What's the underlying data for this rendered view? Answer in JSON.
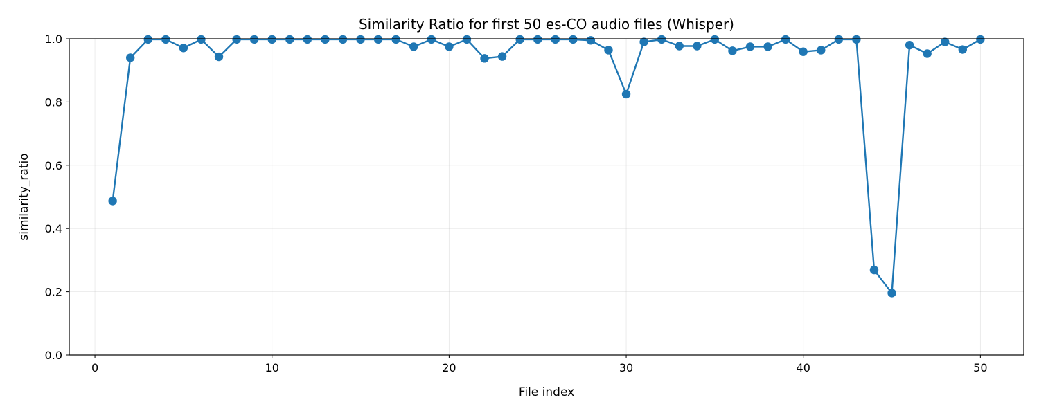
{
  "chart_data": {
    "type": "line",
    "title": "Similarity Ratio for first 50 es-CO audio files (Whisper)",
    "xlabel": "File index",
    "ylabel": "similarity_ratio",
    "xlim": [
      -1.45,
      52.45
    ],
    "ylim": [
      0.0,
      1.0
    ],
    "xticks": [
      0,
      10,
      20,
      30,
      40,
      50
    ],
    "xtick_labels": [
      "0",
      "10",
      "20",
      "30",
      "40",
      "50"
    ],
    "yticks": [
      0.0,
      0.2,
      0.4,
      0.6,
      0.8,
      1.0
    ],
    "ytick_labels": [
      "0.0",
      "0.2",
      "0.4",
      "0.6",
      "0.8",
      "1.0"
    ],
    "grid": true,
    "line_color": "#1f77b4",
    "marker": "circle",
    "series": [
      {
        "x": [
          1,
          2,
          3,
          4,
          5,
          6,
          7,
          8,
          9,
          10,
          11,
          12,
          13,
          14,
          15,
          16,
          17,
          18,
          19,
          20,
          21,
          22,
          23,
          24,
          25,
          26,
          27,
          28,
          29,
          30,
          31,
          32,
          33,
          34,
          35,
          36,
          37,
          38,
          39,
          40,
          41,
          42,
          43,
          44,
          45,
          46,
          47,
          48,
          49,
          50
        ],
        "values": [
          0.487,
          0.94,
          0.998,
          0.998,
          0.971,
          0.998,
          0.943,
          0.998,
          0.998,
          0.998,
          0.998,
          0.998,
          0.998,
          0.998,
          0.998,
          0.998,
          0.998,
          0.975,
          0.998,
          0.975,
          0.998,
          0.938,
          0.944,
          0.998,
          0.998,
          0.998,
          0.998,
          0.995,
          0.964,
          0.825,
          0.99,
          0.998,
          0.977,
          0.977,
          0.998,
          0.962,
          0.975,
          0.975,
          0.998,
          0.959,
          0.964,
          0.998,
          0.998,
          0.269,
          0.196,
          0.98,
          0.953,
          0.99,
          0.966,
          0.998
        ]
      }
    ]
  }
}
